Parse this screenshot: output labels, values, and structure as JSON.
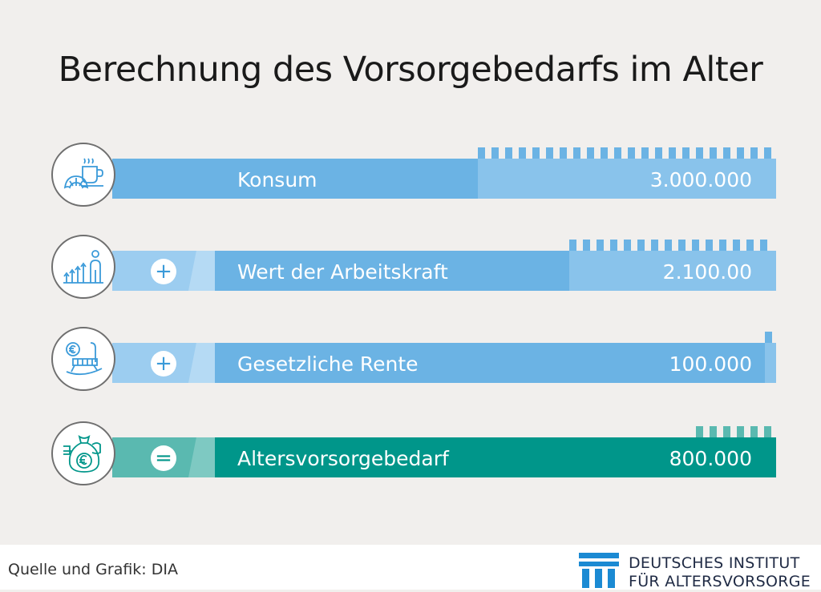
{
  "title": "Berechnung des Vorsorgebedarfs im Alter",
  "rows": [
    {
      "label": "Konsum",
      "value": "3.000.000",
      "sign": "",
      "icon": "coffee-croissant-icon"
    },
    {
      "label": "Wert der Arbeitskraft",
      "value": "2.100.00",
      "sign": "+",
      "icon": "growth-person-icon"
    },
    {
      "label": "Gesetzliche Rente",
      "value": "100.000",
      "sign": "+",
      "icon": "rocking-chair-euro-icon"
    },
    {
      "label": "Altersvorsorgebedarf",
      "value": "800.000",
      "sign": "=",
      "icon": "money-bag-euro-icon"
    }
  ],
  "footer": {
    "source": "Quelle und Grafik: DIA",
    "org_line1": "DEUTSCHES INSTITUT",
    "org_line2": "FÜR ALTERSVORSORGE"
  },
  "colors": {
    "blue": "#6bb3e4",
    "blue_light": "#89c3eb",
    "teal": "#00968a",
    "teal_light": "#5ab9b0"
  }
}
